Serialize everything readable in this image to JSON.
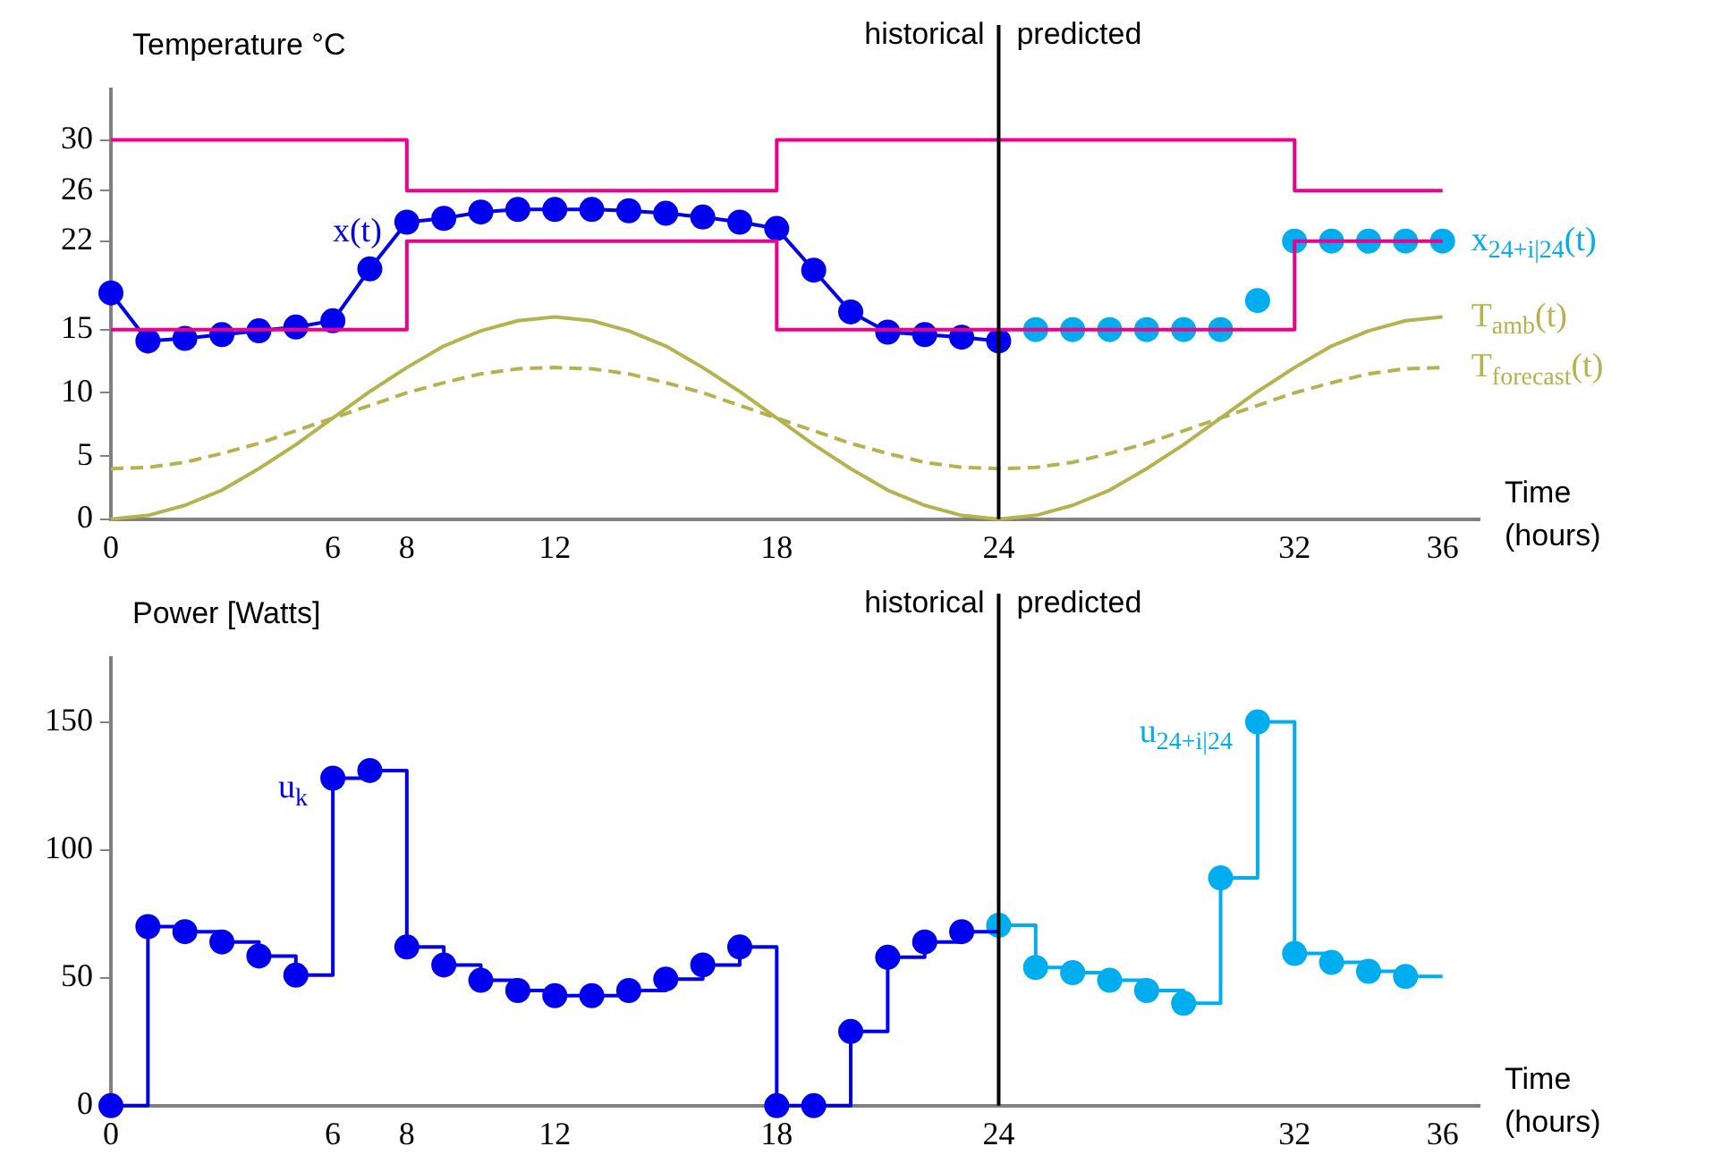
{
  "chart_data": [
    {
      "type": "line",
      "ylabel": "Temperature °C",
      "xlabel": "Time (hours)",
      "xlim": [
        0,
        37
      ],
      "ylim": [
        0,
        34
      ],
      "xticks": [
        0,
        6,
        8,
        12,
        18,
        24,
        32,
        36
      ],
      "yticks": [
        0,
        5,
        10,
        15,
        22,
        26,
        30
      ],
      "ref_lines": [
        {
          "axis": "x",
          "value": 24,
          "label": "historical",
          "color": "#000000"
        }
      ],
      "annotations": [
        "predicted"
      ],
      "series": [
        {
          "type": "step",
          "color": "#ec008c",
          "marker": "none",
          "x": [
            0,
            8,
            18,
            32,
            36
          ],
          "values": [
            30,
            26,
            30,
            26,
            26
          ]
        },
        {
          "type": "step",
          "color": "#ec008c",
          "marker": "none",
          "x": [
            0,
            8,
            18,
            32,
            36
          ],
          "values": [
            15,
            22,
            15,
            22,
            22
          ]
        },
        {
          "name": "T$_{amb}$(t)",
          "color": "#b5b24f",
          "marker": "none",
          "line_style": "solid",
          "x": [
            0,
            1,
            2,
            3,
            4,
            5,
            6,
            7,
            8,
            9,
            10,
            11,
            12,
            13,
            14,
            15,
            16,
            17,
            18,
            19,
            20,
            21,
            22,
            23,
            24,
            25,
            26,
            27,
            28,
            29,
            30,
            31,
            32,
            33,
            34,
            35,
            36
          ],
          "values": [
            0,
            0.3,
            1.1,
            2.3,
            4,
            5.9,
            8,
            10.1,
            12,
            13.7,
            14.9,
            15.7,
            16,
            15.7,
            14.9,
            13.7,
            12,
            10.1,
            8,
            5.9,
            4,
            2.3,
            1.1,
            0.3,
            0,
            0.3,
            1.1,
            2.3,
            4,
            5.9,
            8,
            10.1,
            12,
            13.7,
            14.9,
            15.7,
            16
          ]
        },
        {
          "name": "T$_{forecast}$(t)",
          "color": "#b5b24f",
          "marker": "none",
          "line_style": "dashed",
          "x": [
            0,
            1,
            2,
            3,
            4,
            5,
            6,
            7,
            8,
            9,
            10,
            11,
            12,
            13,
            14,
            15,
            16,
            17,
            18,
            19,
            20,
            21,
            22,
            23,
            24,
            25,
            26,
            27,
            28,
            29,
            30,
            31,
            32,
            33,
            34,
            35,
            36
          ],
          "values": [
            4,
            4.1,
            4.5,
            5.2,
            6,
            7,
            8,
            9,
            10,
            10.8,
            11.5,
            11.9,
            12,
            11.9,
            11.5,
            10.8,
            10,
            9,
            8,
            7,
            6,
            5.2,
            4.5,
            4.1,
            4,
            4.1,
            4.5,
            5.2,
            6,
            7,
            8,
            9,
            10,
            10.8,
            11.5,
            11.9,
            12
          ]
        },
        {
          "name": "x(t)",
          "color": "#0000ee",
          "marker": "circle",
          "line_style": "solid",
          "x": [
            0,
            1,
            2,
            3,
            4,
            5,
            6,
            7,
            8,
            9,
            10,
            11,
            12,
            13,
            14,
            15,
            16,
            17,
            18,
            19,
            20,
            21,
            22,
            23,
            24
          ],
          "values": [
            17.9,
            14.1,
            14.3,
            14.6,
            14.9,
            15.2,
            15.7,
            19.8,
            23.5,
            23.8,
            24.3,
            24.5,
            24.5,
            24.5,
            24.4,
            24.2,
            23.9,
            23.5,
            23,
            19.7,
            16.4,
            14.8,
            14.6,
            14.4,
            14.1
          ]
        },
        {
          "type": "scatter",
          "name": "x$_{24+i|24}$(t)",
          "color": "#00aeef",
          "marker": "circle",
          "x": [
            25,
            26,
            27,
            28,
            29,
            30,
            31,
            32,
            33,
            34,
            35,
            36
          ],
          "values": [
            15,
            15,
            15,
            15,
            15,
            15,
            17.3,
            22,
            22,
            22,
            22,
            22
          ]
        }
      ]
    },
    {
      "type": "step",
      "ylabel": "Power [Watts]",
      "xlabel": "Time (hours)",
      "xlim": [
        0,
        37
      ],
      "ylim": [
        0,
        175
      ],
      "xticks": [
        0,
        6,
        8,
        12,
        18,
        24,
        32,
        36
      ],
      "yticks": [
        0,
        50,
        100,
        150
      ],
      "ref_lines": [
        {
          "axis": "x",
          "value": 24,
          "label": "historical",
          "color": "#000000"
        }
      ],
      "annotations": [
        "predicted"
      ],
      "series": [
        {
          "name": "u$_{k}$",
          "color": "#0000ee",
          "marker": "circle",
          "x": [
            0,
            1,
            2,
            3,
            4,
            5,
            6,
            7,
            8,
            9,
            10,
            11,
            12,
            13,
            14,
            15,
            16,
            17,
            18,
            19,
            20,
            21,
            22,
            23,
            24
          ],
          "values": [
            0,
            70,
            68,
            64,
            58.5,
            51,
            128,
            131,
            62,
            55,
            49,
            45,
            43,
            43,
            45,
            49.5,
            55,
            62,
            0,
            0,
            29,
            58,
            64,
            68,
            68
          ]
        },
        {
          "name": "u$_{24+i|24}$",
          "color": "#00aeef",
          "marker": "circle",
          "x": [
            24,
            25,
            26,
            27,
            28,
            29,
            30,
            31,
            32,
            33,
            34,
            35,
            36
          ],
          "values": [
            70.5,
            54,
            52,
            49,
            45,
            40,
            89,
            150,
            59.5,
            56,
            52.5,
            50.5,
            50.5
          ]
        }
      ]
    }
  ]
}
